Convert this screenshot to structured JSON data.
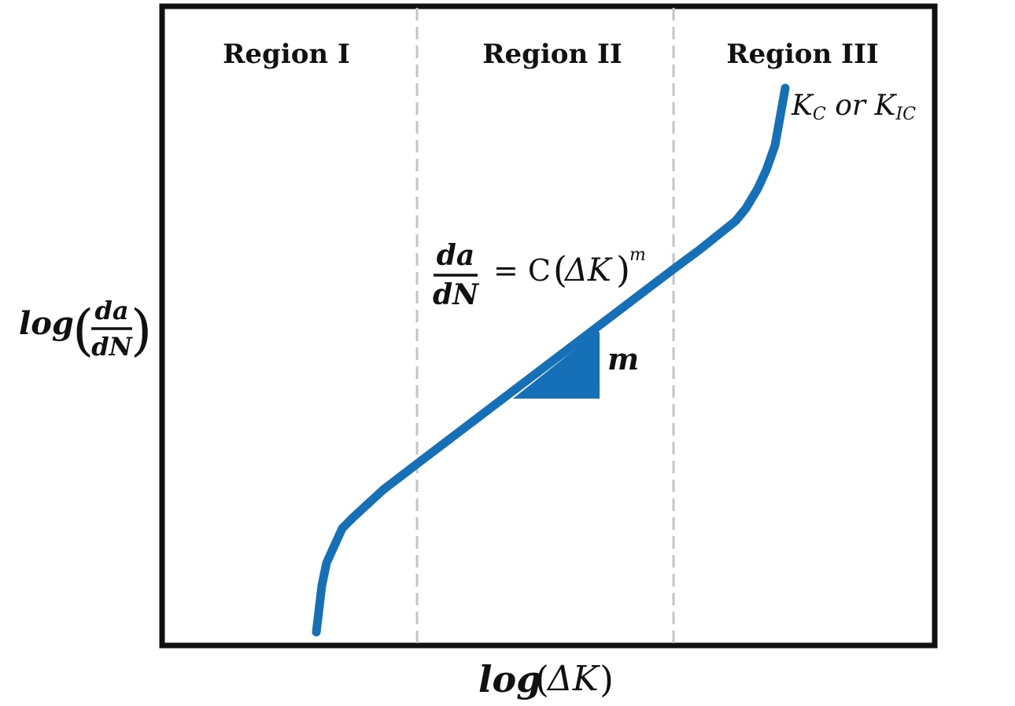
{
  "regions": [
    "Region I",
    "Region II",
    "Region III"
  ],
  "equation": {
    "numerator": "da",
    "denominator": "dN",
    "rhs_prefix": "= C",
    "open_paren": "(",
    "delta_k": "ΔK",
    "close_paren": ")",
    "exponent": "m"
  },
  "slope_label": "m",
  "fracture_toughness": {
    "k1": "K",
    "k1_sub": "C",
    "or": " or ",
    "k2": "K",
    "k2_sub": "IC"
  },
  "y_axis": {
    "prefix": "log",
    "open_paren": "(",
    "numerator": "da",
    "denominator": "dN",
    "close_paren": ")"
  },
  "x_axis": {
    "prefix": "log",
    "open_paren": "(",
    "argument": "ΔK",
    "close_paren": ")"
  },
  "colors": {
    "curve": "#1570b8",
    "frame": "#111111",
    "divider": "#c4c4c4"
  }
}
